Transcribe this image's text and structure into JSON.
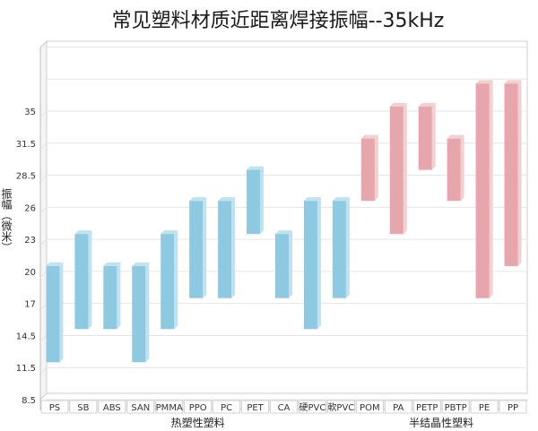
{
  "chart_data": {
    "type": "bar",
    "subtype": "floating-range",
    "title": "常见塑料材质近距离焊接振幅--35kHz",
    "ylabel": "振幅（微米）",
    "y_ticks": [
      "8.5",
      "11.5",
      "14.5",
      "17",
      "20",
      "23",
      "26",
      "28.5",
      "31.5",
      "35"
    ],
    "grid": true,
    "categories": [
      "PS",
      "SB",
      "ABS",
      "SAN",
      "PMMA",
      "PPO",
      "PC",
      "PET",
      "CA",
      "硬PVC",
      "軟PVC",
      "POM",
      "PA",
      "PETP",
      "PBTP",
      "PE",
      "PP"
    ],
    "ranges": [
      [
        12,
        20.5
      ],
      [
        15,
        23.5
      ],
      [
        15,
        20.5
      ],
      [
        12,
        20.5
      ],
      [
        15,
        23.5
      ],
      [
        17.5,
        26.5
      ],
      [
        17.5,
        26.5
      ],
      [
        23.5,
        29
      ],
      [
        17.5,
        23.5
      ],
      [
        15,
        26.5
      ],
      [
        17.5,
        26.5
      ],
      [
        26.5,
        32
      ],
      [
        23.5,
        35.5
      ],
      [
        29,
        35.5
      ],
      [
        26.5,
        32
      ],
      [
        17.5,
        38
      ],
      [
        20.5,
        38
      ]
    ],
    "groups": [
      {
        "name": "热塑性塑料",
        "from": 0,
        "to": 10,
        "color": "#8ec9e2",
        "side_color": "#bfe2f1"
      },
      {
        "name": "半结晶性塑料",
        "from": 11,
        "to": 16,
        "color": "#e6a6ac",
        "side_color": "#f3cfd2"
      }
    ]
  }
}
